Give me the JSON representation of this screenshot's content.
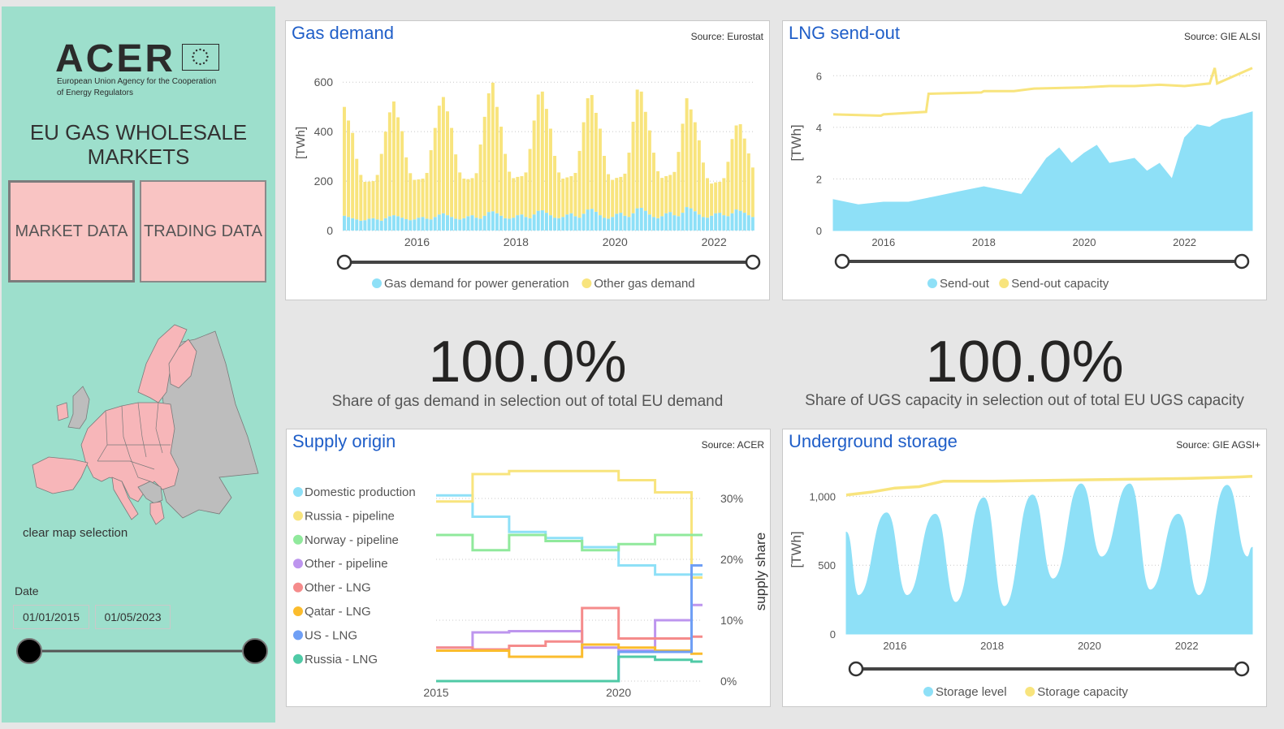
{
  "sidebar": {
    "logo_text": "ACER",
    "logo_subtitle_line1": "European Union Agency for the Cooperation",
    "logo_subtitle_line2": "of Energy Regulators",
    "title_line1": "EU GAS WHOLESALE",
    "title_line2": "MARKETS",
    "market_data_label": "MARKET DATA",
    "trading_data_label": "TRADING DATA",
    "clear_map_label": "clear map selection",
    "date_label": "Date",
    "date_start": "01/01/2015",
    "date_end": "01/05/2023",
    "colors": {
      "background": "#9ddfcc",
      "button": "#f9c4c3",
      "map_selected": "#f7b6b9",
      "map_unselected": "#bdbdbd"
    }
  },
  "colors": {
    "blue_series": "#8ee0f7",
    "yellow_series": "#f8e47d",
    "title": "#1f5ec8"
  },
  "kpis": [
    {
      "value": "100.0%",
      "label": "Share of gas demand in selection out of total EU demand"
    },
    {
      "value": "100.0%",
      "label": "Share of UGS capacity in selection out of total EU UGS capacity"
    }
  ],
  "chart_data": [
    {
      "id": "gas-demand",
      "type": "bar",
      "title": "Gas demand",
      "source": "Source: Eurostat",
      "ylabel": "[TWh]",
      "ylim": [
        0,
        650
      ],
      "yticks": [
        0,
        200,
        400,
        600
      ],
      "xticks": [
        "2016",
        "2018",
        "2020",
        "2022"
      ],
      "x_range": [
        "2015-01",
        "2023-04"
      ],
      "stacked": true,
      "series": [
        {
          "name": "Gas demand for power generation",
          "color": "#8ee0f7",
          "values": [
            60,
            55,
            50,
            45,
            40,
            42,
            48,
            50,
            45,
            40,
            50,
            58,
            62,
            58,
            52,
            46,
            42,
            45,
            52,
            55,
            48,
            45,
            55,
            65,
            70,
            62,
            55,
            48,
            45,
            50,
            58,
            62,
            52,
            48,
            60,
            75,
            78,
            70,
            60,
            50,
            48,
            52,
            62,
            65,
            55,
            50,
            65,
            80,
            82,
            72,
            62,
            52,
            50,
            55,
            65,
            70,
            58,
            52,
            68,
            85,
            88,
            76,
            62,
            52,
            48,
            55,
            68,
            72,
            60,
            55,
            70,
            90,
            92,
            80,
            65,
            55,
            50,
            58,
            70,
            75,
            62,
            58,
            72,
            95,
            90,
            78,
            65,
            55,
            52,
            60,
            70,
            72,
            62,
            58,
            70,
            85,
            80,
            72,
            62,
            55
          ]
        },
        {
          "name": "Other gas demand",
          "color": "#f8e47d",
          "values": [
            440,
            390,
            345,
            245,
            185,
            155,
            150,
            150,
            180,
            270,
            350,
            420,
            460,
            400,
            350,
            250,
            190,
            160,
            155,
            155,
            185,
            280,
            360,
            440,
            470,
            420,
            360,
            260,
            190,
            160,
            150,
            150,
            180,
            300,
            400,
            480,
            520,
            430,
            360,
            260,
            190,
            160,
            155,
            155,
            180,
            280,
            380,
            470,
            480,
            420,
            350,
            250,
            185,
            155,
            150,
            150,
            175,
            270,
            370,
            450,
            460,
            400,
            350,
            250,
            180,
            150,
            145,
            145,
            170,
            260,
            370,
            480,
            470,
            400,
            340,
            260,
            190,
            155,
            150,
            150,
            175,
            260,
            360,
            440,
            400,
            360,
            300,
            220,
            160,
            130,
            125,
            125,
            150,
            220,
            300,
            340,
            350,
            300,
            250,
            200
          ]
        }
      ]
    },
    {
      "id": "lng-send-out",
      "type": "area",
      "title": "LNG send-out",
      "source": "Source: GIE ALSI",
      "ylabel": "[TWh]",
      "ylim": [
        0,
        6.7
      ],
      "yticks": [
        0,
        2,
        4,
        6
      ],
      "xticks": [
        "2016",
        "2018",
        "2020",
        "2022"
      ],
      "x_range": [
        2015.0,
        2023.35
      ],
      "series": [
        {
          "name": "Send-out",
          "color": "#8ee0f7",
          "x": [
            2015.0,
            2015.5,
            2016.0,
            2016.5,
            2017.0,
            2017.5,
            2018.0,
            2018.5,
            2018.75,
            2019.0,
            2019.25,
            2019.5,
            2019.75,
            2020.0,
            2020.25,
            2020.5,
            2020.75,
            2021.0,
            2021.25,
            2021.5,
            2021.75,
            2022.0,
            2022.25,
            2022.5,
            2022.75,
            2023.0,
            2023.35
          ],
          "values": [
            1.2,
            1.0,
            1.1,
            1.1,
            1.3,
            1.5,
            1.7,
            1.5,
            1.4,
            2.1,
            2.8,
            3.2,
            2.6,
            3.0,
            3.3,
            2.6,
            2.7,
            2.8,
            2.3,
            2.6,
            2.0,
            3.6,
            4.1,
            4.0,
            4.3,
            4.4,
            4.6
          ]
        },
        {
          "name": "Send-out capacity",
          "color": "#f8e47d",
          "x": [
            2015.0,
            2015.95,
            2016.0,
            2016.85,
            2016.9,
            2017.95,
            2018.0,
            2018.6,
            2019.0,
            2020.0,
            2020.5,
            2021.0,
            2021.5,
            2022.0,
            2022.5,
            2022.6,
            2022.65,
            2023.0,
            2023.35
          ],
          "values": [
            4.5,
            4.45,
            4.5,
            4.6,
            5.3,
            5.35,
            5.4,
            5.4,
            5.5,
            5.55,
            5.6,
            5.6,
            5.65,
            5.6,
            5.7,
            6.3,
            5.7,
            6.0,
            6.3
          ]
        }
      ]
    },
    {
      "id": "supply-origin",
      "type": "line",
      "title": "Supply origin",
      "source": "Source: ACER",
      "ylabel": "supply share",
      "ylim": [
        0,
        36
      ],
      "yticks": [
        "0%",
        "10%",
        "20%",
        "30%"
      ],
      "xticks": [
        "2015",
        "2020"
      ],
      "x": [
        2015,
        2016,
        2017,
        2018,
        2019,
        2020,
        2021,
        2022,
        2022.3
      ],
      "series": [
        {
          "name": "Domestic production",
          "color": "#8ee0f7",
          "values": [
            30.5,
            27,
            24.5,
            23.5,
            22,
            19,
            17.5,
            17.5,
            17.5
          ]
        },
        {
          "name": "Russia - pipeline",
          "color": "#f8e47d",
          "values": [
            29.5,
            34,
            34.5,
            34.5,
            34.5,
            33,
            31,
            17,
            17
          ]
        },
        {
          "name": "Norway - pipeline",
          "color": "#90e99c",
          "values": [
            24,
            21.5,
            24,
            23,
            21.5,
            22.5,
            24,
            24,
            24
          ]
        },
        {
          "name": "Other - pipeline",
          "color": "#bd95ee",
          "values": [
            5.5,
            8,
            8.2,
            8.2,
            5.5,
            5,
            10,
            12.5,
            12.5
          ]
        },
        {
          "name": "Other - LNG",
          "color": "#f58b8b",
          "values": [
            5.5,
            5.2,
            5.8,
            6.5,
            12,
            7,
            7,
            7.3,
            7.3
          ]
        },
        {
          "name": "Qatar - LNG",
          "color": "#fbbc2d",
          "values": [
            5,
            5,
            4,
            4,
            6,
            5.5,
            5,
            4.5,
            4.5
          ]
        },
        {
          "name": "US - LNG",
          "color": "#6f9ff5",
          "values": [
            0,
            0,
            0,
            0,
            0,
            4.8,
            4.8,
            19,
            19
          ]
        },
        {
          "name": "Russia - LNG",
          "color": "#4fcaa6",
          "values": [
            0,
            0,
            0,
            0,
            0,
            4,
            3.5,
            3.2,
            3.2
          ]
        }
      ]
    },
    {
      "id": "underground-storage",
      "type": "area",
      "title": "Underground storage",
      "source": "Source: GIE AGSI+",
      "ylabel": "[TWh]",
      "ylim": [
        0,
        1250
      ],
      "yticks": [
        "0",
        "500",
        "1,000"
      ],
      "xticks": [
        "2016",
        "2018",
        "2020",
        "2022"
      ],
      "x_range": [
        2015.0,
        2023.35
      ],
      "series": [
        {
          "name": "Storage level",
          "color": "#8ee0f7",
          "x": [
            2015.0,
            2015.25,
            2015.83,
            2016.25,
            2016.83,
            2017.25,
            2017.83,
            2018.25,
            2018.83,
            2019.25,
            2019.83,
            2020.25,
            2020.83,
            2021.25,
            2021.83,
            2022.25,
            2022.83,
            2023.25,
            2023.35
          ],
          "values": [
            740,
            280,
            880,
            280,
            870,
            230,
            990,
            200,
            1010,
            400,
            1090,
            560,
            1090,
            320,
            870,
            280,
            1080,
            560,
            630
          ]
        },
        {
          "name": "Storage capacity",
          "color": "#f8e47d",
          "x": [
            2015.0,
            2015.5,
            2016.0,
            2016.5,
            2017.0,
            2018.0,
            2019.0,
            2020.0,
            2021.0,
            2022.0,
            2023.0,
            2023.35
          ],
          "values": [
            1010,
            1030,
            1060,
            1070,
            1110,
            1110,
            1115,
            1120,
            1125,
            1130,
            1140,
            1145
          ]
        }
      ]
    }
  ]
}
